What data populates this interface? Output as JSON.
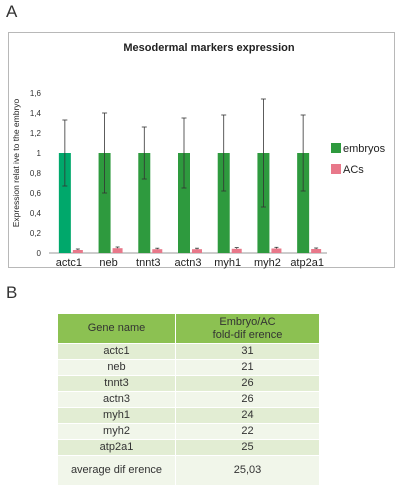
{
  "panel_a_label": "A",
  "panel_b_label": "B",
  "chart_data": {
    "type": "bar",
    "title": "Mesodermal markers expression",
    "ylabel": "Expression relat ive to the embryo",
    "xlabel": "",
    "ylim": [
      0,
      1.8
    ],
    "yticks": [
      "0",
      "0,2",
      "0,4",
      "0,6",
      "0,8",
      "1",
      "1,2",
      "1,4",
      "1,6"
    ],
    "grid": false,
    "legend_position": "right",
    "categories": [
      "actc1",
      "neb",
      "tnnt3",
      "actn3",
      "myh1",
      "myh2",
      "atp2a1"
    ],
    "series": [
      {
        "name": "embryos",
        "color": "#2e9a3e",
        "first_bar_color": "#00a86b",
        "values": [
          1,
          1,
          1,
          1,
          1,
          1,
          1
        ],
        "error": [
          0.33,
          0.4,
          0.26,
          0.35,
          0.38,
          0.54,
          0.38
        ]
      },
      {
        "name": "ACs",
        "color": "#e8788a",
        "values": [
          0.03,
          0.048,
          0.038,
          0.038,
          0.042,
          0.045,
          0.04
        ],
        "error": [
          0.01,
          0.012,
          0.01,
          0.01,
          0.012,
          0.012,
          0.01
        ]
      }
    ]
  },
  "table": {
    "headers": [
      "Gene name",
      "Embryo/AC\nfold-dif erence"
    ],
    "rows": [
      [
        "actc1",
        "31"
      ],
      [
        "neb",
        "21"
      ],
      [
        "tnnt3",
        "26"
      ],
      [
        "actn3",
        "26"
      ],
      [
        "myh1",
        "24"
      ],
      [
        "myh2",
        "22"
      ],
      [
        "atp2a1",
        "25"
      ]
    ],
    "average": [
      "average dif erence",
      "25,03"
    ]
  }
}
